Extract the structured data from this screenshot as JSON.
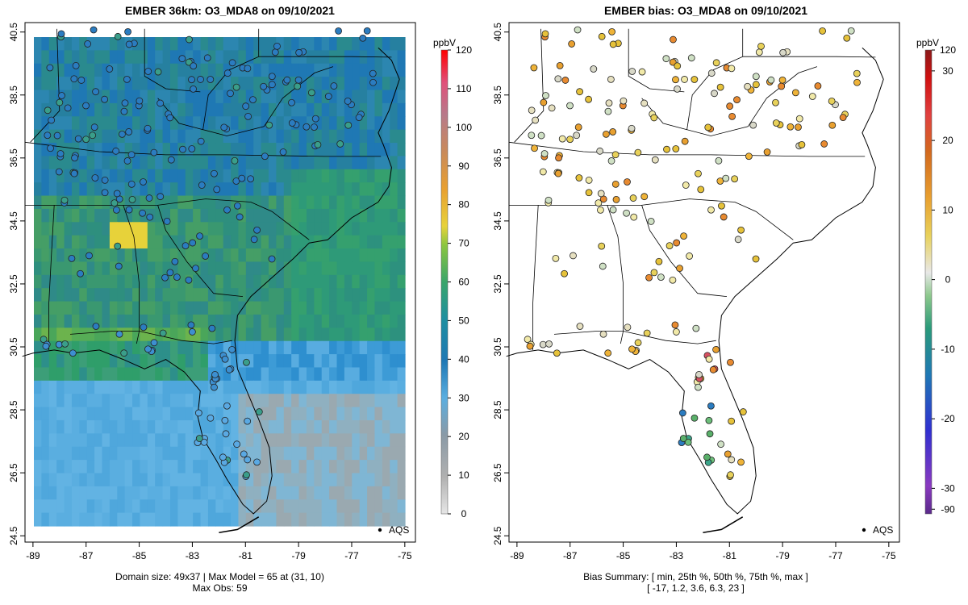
{
  "left_panel": {
    "title": "EMBER 36km: O3_MDA8 on 09/10/2021",
    "footer_line1": "Domain size: 49x37 | Max Model = 65 at (31, 10)",
    "footer_line2": "Max Obs: 59",
    "legend_label": "AQS",
    "colorbar_unit": "ppbV",
    "colorbar_ticks": [
      "0",
      "10",
      "20",
      "30",
      "40",
      "50",
      "60",
      "70",
      "80",
      "90",
      "100",
      "110",
      "120"
    ]
  },
  "right_panel": {
    "title": "EMBER bias: O3_MDA8 on 09/10/2021",
    "footer_line1": "Bias Summary: [ min, 25th %, 50th %, 75th %, max ]",
    "footer_line2": "[ -17,   1.2,   3.6,   6.3,   23 ]",
    "legend_label": "AQS",
    "colorbar_unit": "ppbV",
    "colorbar_ticks": [
      "-90",
      "-30",
      "-20",
      "-10",
      "0",
      "10",
      "20",
      "30",
      "120"
    ]
  },
  "axes": {
    "x_ticks": [
      "-89",
      "-87",
      "-85",
      "-83",
      "-81",
      "-79",
      "-77",
      "-75"
    ],
    "y_ticks": [
      "24.5",
      "26.5",
      "28.5",
      "30.5",
      "32.5",
      "34.5",
      "36.5",
      "38.5",
      "40.5"
    ],
    "x_range": [
      -89.3,
      -74.6
    ],
    "y_range": [
      24.3,
      40.8
    ]
  },
  "chart_data": {
    "type": "heatmap",
    "variable": "O3_MDA8",
    "date": "09/10/2021",
    "domain_size": "49x37",
    "max_model": 65,
    "max_model_cell": [
      31,
      10
    ],
    "max_obs": 59,
    "bias_summary": {
      "min": -17,
      "p25": 1.2,
      "p50": 3.6,
      "p75": 6.3,
      "max": 23
    },
    "model_colorscale_range": [
      0,
      120
    ],
    "bias_colorscale_range": [
      -90,
      120
    ],
    "colors": {
      "model_mid": "#2e8f7e",
      "ocean_south": "#5aaee0",
      "gulf": "#4fae5a",
      "hot": "#e7d23a"
    }
  }
}
